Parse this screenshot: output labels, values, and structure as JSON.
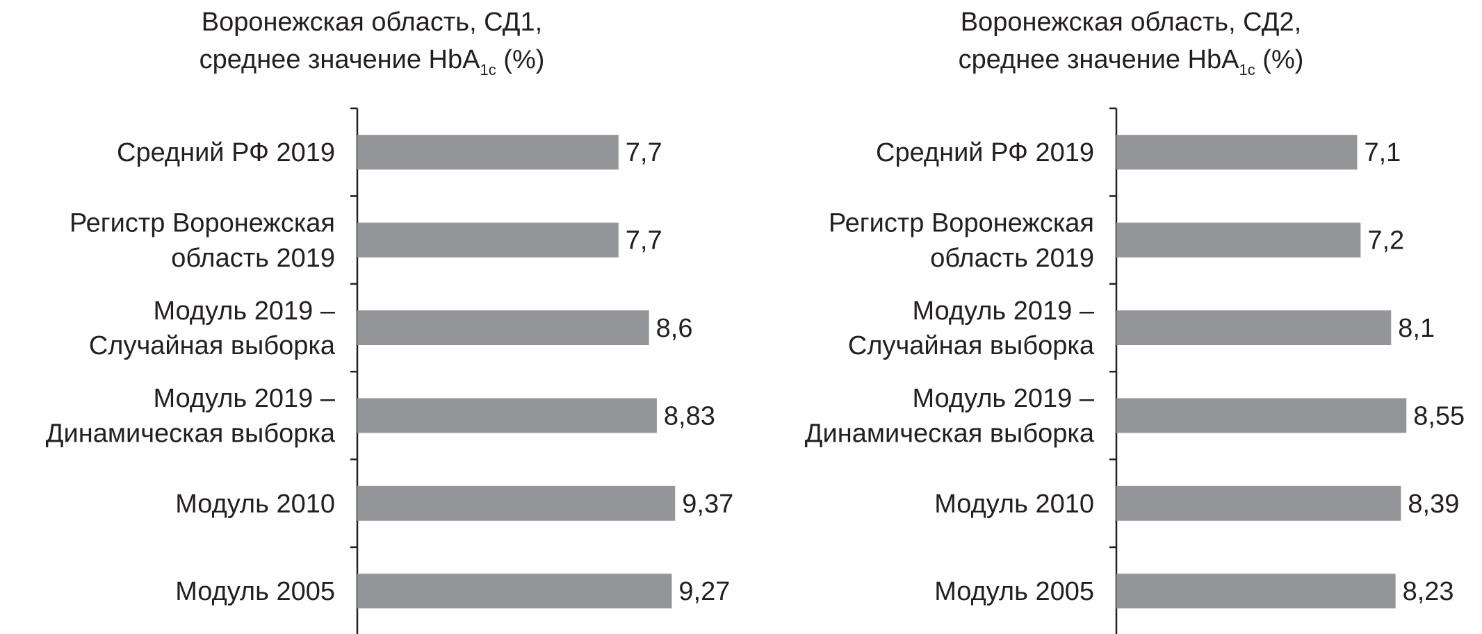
{
  "chart_data": [
    {
      "type": "bar",
      "orientation": "horizontal",
      "title_lines": [
        "Воронежская область, СД1,",
        "среднее значение HbA"
      ],
      "title_subscript": "1c",
      "title_suffix": " (%)",
      "categories": [
        [
          "Средний РФ 2019"
        ],
        [
          "Регистр Воронежская",
          "область 2019"
        ],
        [
          "Модуль 2019 –",
          "Случайная выборка"
        ],
        [
          "Модуль 2019 –",
          "Динамическая выборка"
        ],
        [
          "Модуль 2010"
        ],
        [
          "Модуль 2005"
        ]
      ],
      "values": [
        7.7,
        7.7,
        8.6,
        8.83,
        9.37,
        9.27
      ],
      "value_labels": [
        "7,7",
        "7,7",
        "8,6",
        "8,83",
        "9,37",
        "9,27"
      ],
      "xlim": [
        0,
        10
      ],
      "grid": false,
      "legend": "none"
    },
    {
      "type": "bar",
      "orientation": "horizontal",
      "title_lines": [
        "Воронежская область, СД2,",
        "среднее значение HbA"
      ],
      "title_subscript": "1c",
      "title_suffix": " (%)",
      "categories": [
        [
          "Средний РФ 2019"
        ],
        [
          "Регистр Воронежская",
          "область 2019"
        ],
        [
          "Модуль 2019 –",
          "Случайная выборка"
        ],
        [
          "Модуль 2019 –",
          "Динамическая выборка"
        ],
        [
          "Модуль 2010"
        ],
        [
          "Модуль 2005"
        ]
      ],
      "values": [
        7.1,
        7.2,
        8.1,
        8.55,
        8.39,
        8.23
      ],
      "value_labels": [
        "7,1",
        "7,2",
        "8,1",
        "8,55",
        "8,39",
        "8,23"
      ],
      "xlim": [
        0,
        10
      ],
      "grid": false,
      "legend": "none"
    }
  ],
  "colors": {
    "bar": "#939598",
    "axis": "#231f20",
    "text": "#231f20"
  }
}
